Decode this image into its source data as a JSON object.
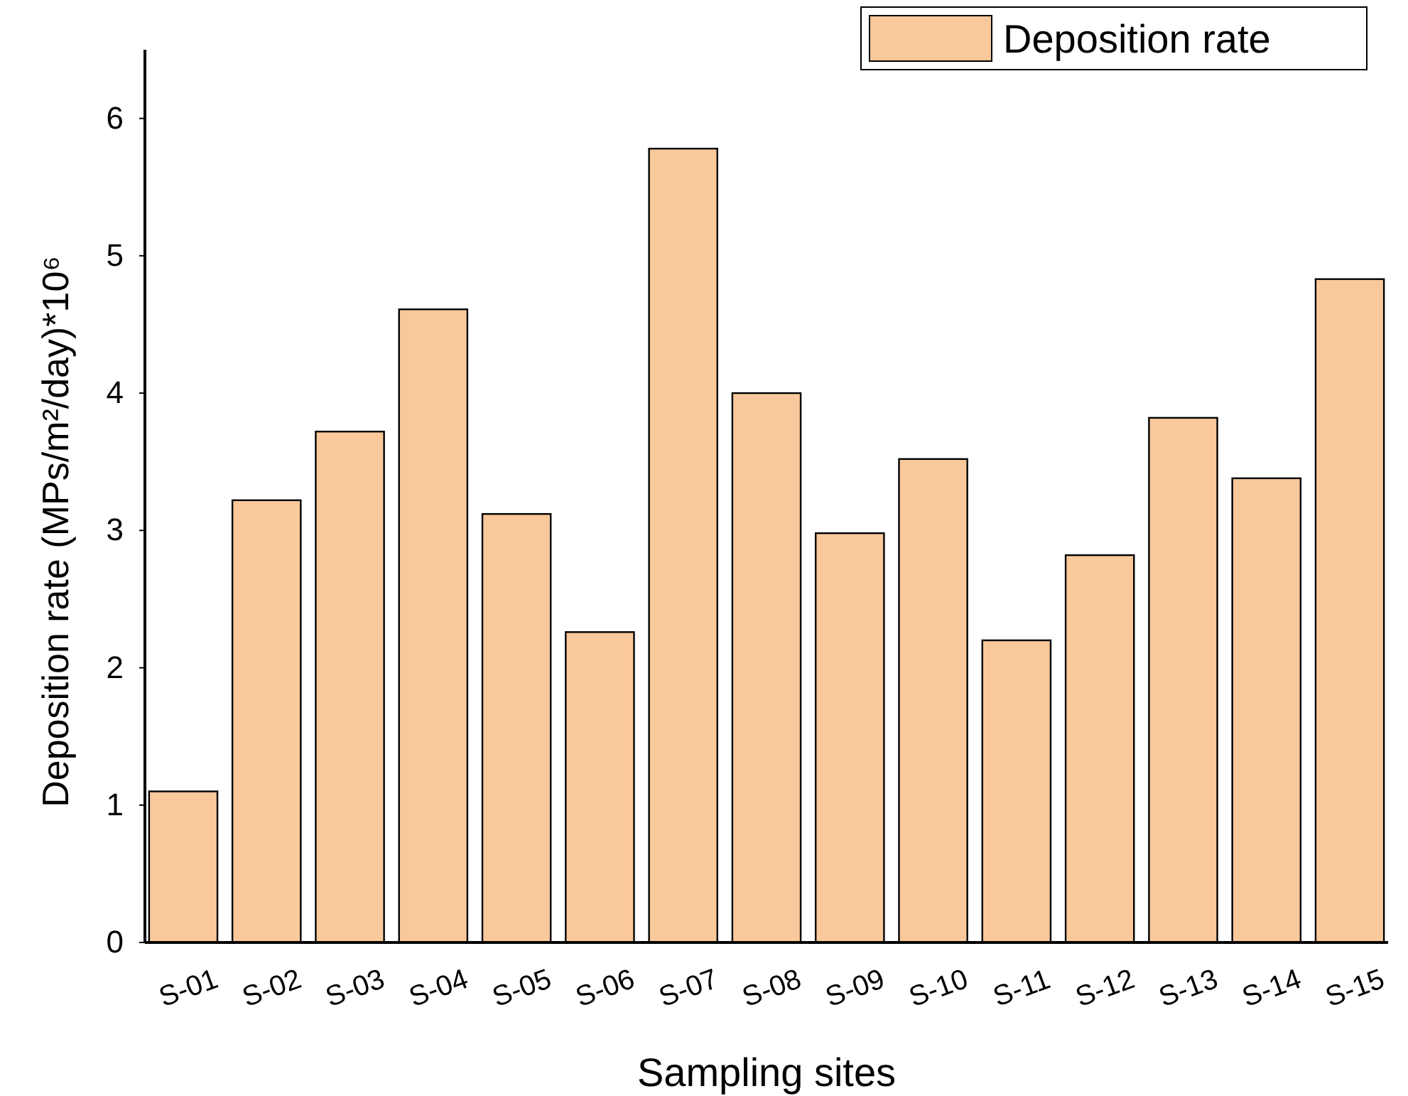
{
  "chart_data": {
    "type": "bar",
    "xlabel": "Sampling sites",
    "ylabel": "Deposition rate (MPs/m²/day)*10⁶",
    "categories": [
      "S-01",
      "S-02",
      "S-03",
      "S-04",
      "S-05",
      "S-06",
      "S-07",
      "S-08",
      "S-09",
      "S-10",
      "S-11",
      "S-12",
      "S-13",
      "S-14",
      "S-15"
    ],
    "series": [
      {
        "name": "Deposition rate",
        "color": "#f9c89b",
        "values": [
          1.1,
          3.22,
          3.72,
          4.61,
          3.12,
          2.26,
          5.78,
          4.0,
          2.98,
          3.52,
          2.2,
          2.82,
          3.82,
          3.38,
          4.83
        ]
      }
    ],
    "ylim": [
      0,
      6.5
    ],
    "yticks": [
      0,
      1,
      2,
      3,
      4,
      5,
      6
    ],
    "legend": "top right",
    "grid": false
  }
}
